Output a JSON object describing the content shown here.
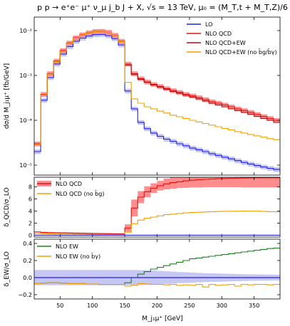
{
  "figure": {
    "title": "p p → e⁺e⁻ μ⁺ ν_μ j_b J + X,  √s = 13 TeV,  μ₀ = (M_T,t + M_T,Z)/6",
    "x_label": "M_j₁μ⁺ [GeV]",
    "x_ticks": [
      "50",
      "100",
      "150",
      "200",
      "250",
      "300",
      "350"
    ]
  },
  "colors": {
    "lo": "#2020e0",
    "qcd": "#e01010",
    "qcd_band": "#ff7070",
    "qcdew": "#b01010",
    "qcdew_nobg": "#f0a000",
    "ew": "#208020",
    "lo_band": "#9999ee"
  },
  "chart_data": [
    {
      "type": "line",
      "panel": "main",
      "ylabel": "dσ/d M_j₁μ⁺ [fb/GeV]",
      "yscale": "log",
      "ylim": [
        6e-06,
        0.02
      ],
      "xlim": [
        10,
        390
      ],
      "y_ticks": [
        "10⁻⁵",
        "10⁻⁴",
        "10⁻³",
        "10⁻²"
      ],
      "x": [
        15,
        25,
        35,
        45,
        55,
        65,
        75,
        85,
        95,
        105,
        115,
        125,
        135,
        145,
        155,
        165,
        175,
        185,
        195,
        205,
        215,
        225,
        235,
        245,
        255,
        265,
        275,
        285,
        295,
        305,
        315,
        325,
        335,
        345,
        355,
        365,
        375,
        385
      ],
      "series": [
        {
          "name": "LO",
          "values": [
            2e-05,
            0.00028,
            0.0009,
            0.0018,
            0.003,
            0.0044,
            0.0058,
            0.0068,
            0.0076,
            0.0081,
            0.0082,
            0.0077,
            0.0066,
            0.0048,
            0.00045,
            0.00018,
            9e-05,
            6.5e-05,
            5.2e-05,
            4.4e-05,
            3.8e-05,
            3.4e-05,
            3e-05,
            2.7e-05,
            2.4e-05,
            2.2e-05,
            2e-05,
            1.8e-05,
            1.65e-05,
            1.5e-05,
            1.38e-05,
            1.26e-05,
            1.15e-05,
            1.06e-05,
            9.8e-06,
            9.1e-06,
            8.5e-06,
            8e-06
          ]
        },
        {
          "name": "NLO QCD",
          "values": [
            3e-05,
            0.00038,
            0.0011,
            0.0021,
            0.0036,
            0.0053,
            0.0069,
            0.0081,
            0.009,
            0.0096,
            0.0097,
            0.0092,
            0.0079,
            0.0058,
            0.0018,
            0.0011,
            0.00085,
            0.00072,
            0.00063,
            0.00057,
            0.00051,
            0.00046,
            0.00042,
            0.00038,
            0.00035,
            0.00032,
            0.00029,
            0.00026,
            0.00024,
            0.00022,
            0.0002,
            0.00018,
            0.000165,
            0.00015,
            0.000135,
            0.000122,
            0.00011,
            0.0001
          ]
        },
        {
          "name": "NLO QCD+EW",
          "values": [
            2.9e-05,
            0.00037,
            0.00107,
            0.00205,
            0.0035,
            0.0052,
            0.0068,
            0.008,
            0.0089,
            0.0095,
            0.0096,
            0.0091,
            0.0078,
            0.0057,
            0.0017,
            0.00105,
            0.00082,
            0.0007,
            0.00061,
            0.00055,
            0.00049,
            0.00044,
            0.0004,
            0.00036,
            0.00033,
            0.0003,
            0.00027,
            0.00024,
            0.00022,
            0.0002,
            0.00018,
            0.000165,
            0.00015,
            0.000136,
            0.000122,
            0.00011,
            0.0001,
            9e-05
          ]
        },
        {
          "name": "NLO QCD+EW (no b̄g/b̄γ)",
          "values": [
            2.9e-05,
            0.00037,
            0.00107,
            0.00205,
            0.0035,
            0.0052,
            0.0068,
            0.008,
            0.0089,
            0.0095,
            0.0096,
            0.0091,
            0.0078,
            0.0057,
            0.0007,
            0.0003,
            0.00024,
            0.0002,
            0.00018,
            0.00016,
            0.000145,
            0.00013,
            0.00012,
            0.00011,
            0.0001,
            9.2e-05,
            8.5e-05,
            7.8e-05,
            7.2e-05,
            6.6e-05,
            6.1e-05,
            5.6e-05,
            5.2e-05,
            4.8e-05,
            4.5e-05,
            4.2e-05,
            3.9e-05,
            3.7e-05
          ]
        }
      ],
      "band_rel": 0.12
    },
    {
      "type": "line",
      "panel": "ratio_qcd",
      "ylabel": "δ_QCD/σ_LO",
      "ylim": [
        -0.3,
        9.6
      ],
      "y_ticks": [
        "0",
        "2",
        "4",
        "6",
        "8"
      ],
      "series": [
        {
          "name": "NLO QCD",
          "values": [
            0.55,
            0.45,
            0.42,
            0.4,
            0.38,
            0.36,
            0.34,
            0.32,
            0.3,
            0.28,
            0.27,
            0.25,
            0.23,
            0.22,
            1.2,
            4.5,
            6.3,
            7.2,
            7.8,
            8.2,
            8.5,
            8.7,
            8.85,
            9.0,
            9.1,
            9.2,
            9.25,
            9.3,
            9.35,
            9.4,
            9.42,
            9.45,
            9.47,
            9.48,
            9.5,
            9.5,
            9.52,
            9.52
          ]
        },
        {
          "name": "NLO QCD (no b̄g)",
          "values": [
            0.3,
            0.25,
            0.22,
            0.2,
            0.18,
            0.17,
            0.16,
            0.15,
            0.14,
            0.13,
            0.12,
            0.11,
            0.1,
            0.1,
            0.5,
            1.9,
            2.5,
            2.8,
            3.0,
            3.2,
            3.4,
            3.5,
            3.6,
            3.7,
            3.75,
            3.8,
            3.85,
            3.9,
            3.92,
            3.95,
            3.97,
            3.98,
            3.99,
            4.0,
            4.0,
            3.95,
            3.9,
            3.9
          ]
        },
        {
          "name": "LO",
          "values": [
            0,
            0,
            0,
            0,
            0,
            0,
            0,
            0,
            0,
            0,
            0,
            0,
            0,
            0,
            0,
            0,
            0,
            0,
            0,
            0,
            0,
            0,
            0,
            0,
            0,
            0,
            0,
            0,
            0,
            0,
            0,
            0,
            0,
            0,
            0,
            0,
            0,
            0
          ]
        }
      ],
      "band_lo": [
        0.5,
        0.35,
        0.32,
        0.3,
        0.28,
        0.26,
        0.24,
        0.22,
        0.2,
        0.18,
        0.17,
        0.15,
        0.13,
        0.12,
        0.6,
        3.1,
        5.3,
        6.3,
        7.0,
        7.4,
        7.6,
        7.7,
        7.8,
        7.85,
        7.9,
        7.9,
        7.95,
        7.95,
        7.95,
        7.95,
        7.95,
        7.95,
        7.9,
        7.9,
        7.9,
        7.9,
        7.9,
        7.9
      ],
      "band_hi": [
        0.6,
        0.55,
        0.52,
        0.5,
        0.48,
        0.46,
        0.44,
        0.42,
        0.4,
        0.38,
        0.37,
        0.35,
        0.33,
        0.32,
        1.8,
        5.9,
        7.3,
        8.1,
        8.6,
        9.0,
        9.4,
        9.6,
        9.6,
        9.6,
        9.6,
        9.6,
        9.6,
        9.6,
        9.6,
        9.6,
        9.6,
        9.6,
        9.6,
        9.6,
        9.6,
        9.6,
        9.6,
        9.6
      ]
    },
    {
      "type": "line",
      "panel": "ratio_ew",
      "ylabel": "δ_EW/σ_LO",
      "ylim": [
        -0.25,
        0.45
      ],
      "y_ticks": [
        "−0.2",
        "0.0",
        "0.2",
        "0.4"
      ],
      "series": [
        {
          "name": "NLO EW",
          "values": [
            -0.07,
            -0.065,
            -0.06,
            -0.06,
            -0.065,
            -0.07,
            -0.07,
            -0.07,
            -0.075,
            -0.075,
            -0.08,
            -0.08,
            -0.08,
            -0.08,
            -0.06,
            0.0,
            0.04,
            0.07,
            0.1,
            0.12,
            0.14,
            0.16,
            0.18,
            0.2,
            0.22,
            0.23,
            0.24,
            0.25,
            0.26,
            0.27,
            0.28,
            0.29,
            0.3,
            0.31,
            0.32,
            0.33,
            0.34,
            0.345
          ]
        },
        {
          "name": "NLO EW (no b̄γ)",
          "values": [
            -0.07,
            -0.065,
            -0.06,
            -0.06,
            -0.065,
            -0.07,
            -0.07,
            -0.07,
            -0.075,
            -0.075,
            -0.08,
            -0.08,
            -0.08,
            -0.08,
            -0.1,
            -0.09,
            -0.07,
            -0.075,
            -0.08,
            -0.08,
            -0.085,
            -0.08,
            -0.09,
            -0.085,
            -0.09,
            -0.08,
            -0.11,
            -0.08,
            -0.09,
            -0.085,
            -0.08,
            -0.1,
            -0.08,
            -0.085,
            -0.08,
            -0.08,
            -0.085,
            -0.08
          ]
        },
        {
          "name": "LO",
          "values": [
            0,
            0,
            0,
            0,
            0,
            0,
            0,
            0,
            0,
            0,
            0,
            0,
            0,
            0,
            0,
            0,
            0,
            0,
            0,
            0,
            0,
            0,
            0,
            0,
            0,
            0,
            0,
            0,
            0,
            0,
            0,
            0,
            0,
            0,
            0,
            0,
            0,
            0
          ]
        }
      ],
      "band_half": [
        0.09,
        0.09,
        0.09,
        0.09,
        0.09,
        0.09,
        0.09,
        0.09,
        0.09,
        0.09,
        0.09,
        0.09,
        0.09,
        0.09,
        0.09,
        0.09,
        0.088,
        0.085,
        0.082,
        0.078,
        0.074,
        0.07,
        0.066,
        0.062,
        0.058,
        0.055,
        0.052,
        0.05,
        0.048,
        0.046,
        0.044,
        0.042,
        0.04,
        0.038,
        0.037,
        0.036,
        0.035,
        0.034
      ]
    }
  ]
}
